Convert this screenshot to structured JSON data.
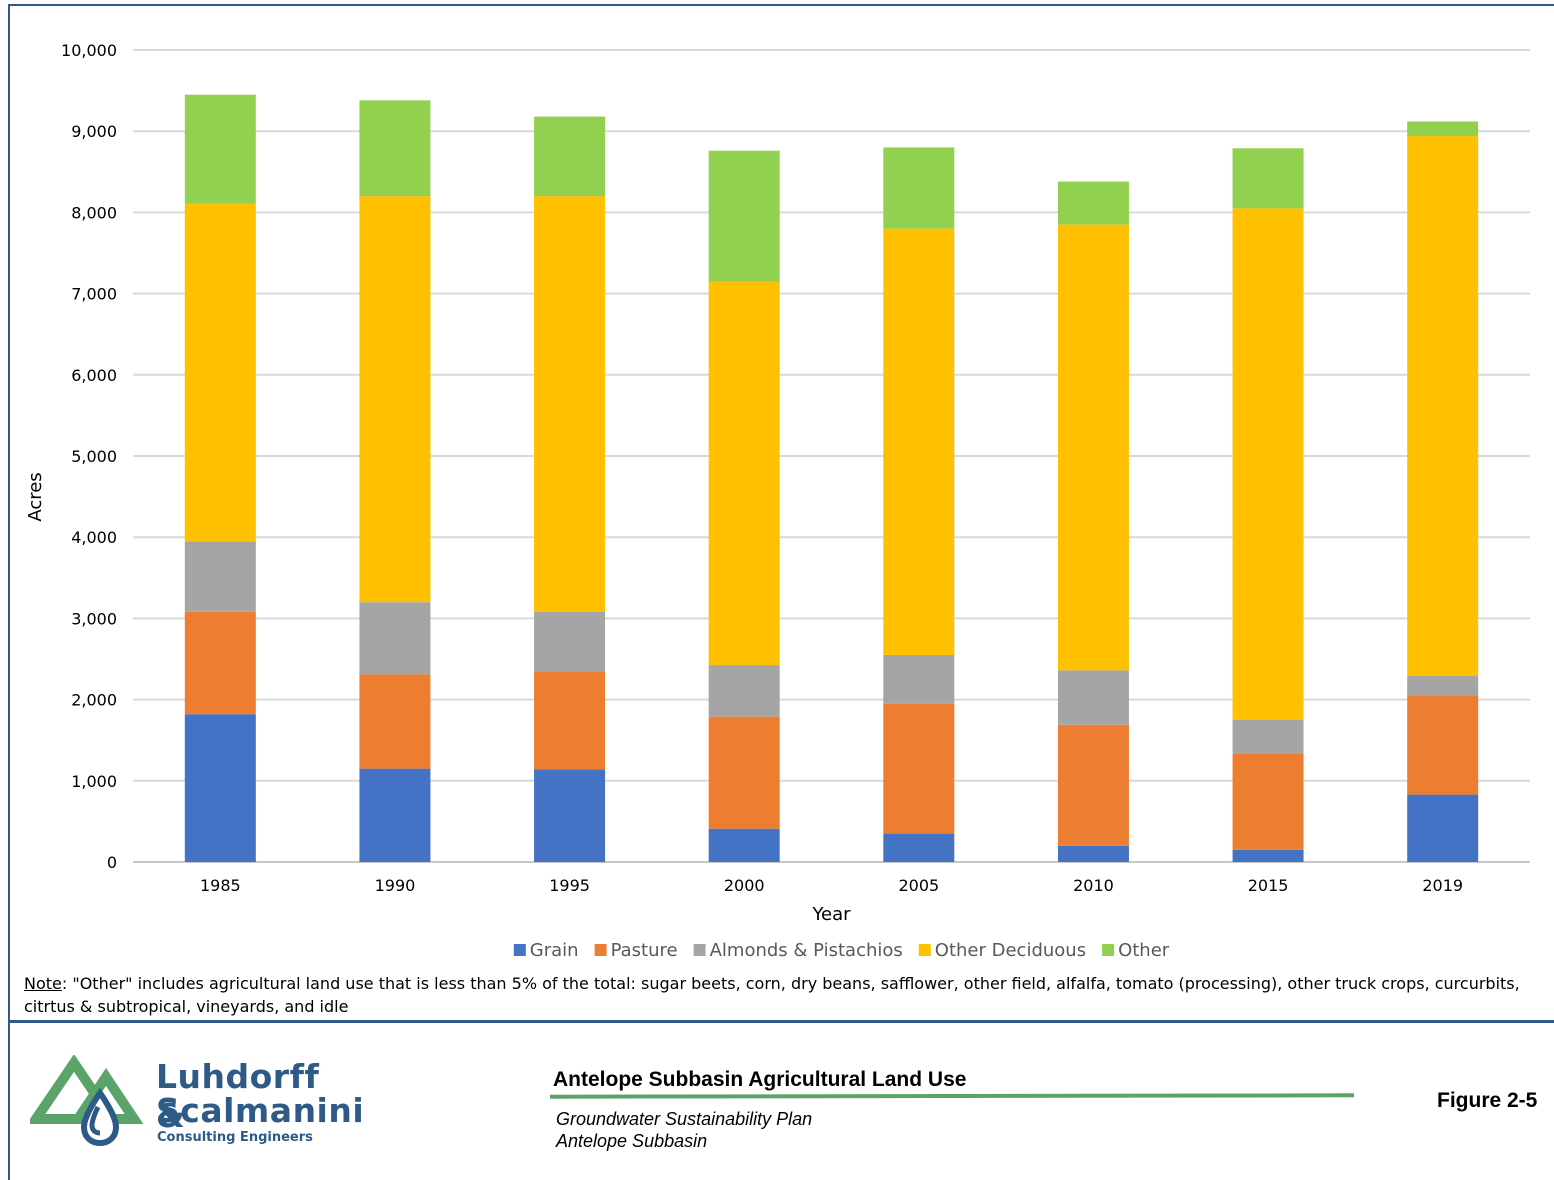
{
  "chart_data": {
    "type": "bar",
    "stacked": true,
    "categories": [
      "1985",
      "1990",
      "1995",
      "2000",
      "2005",
      "2010",
      "2015",
      "2019"
    ],
    "series": [
      {
        "name": "Grain",
        "color": "#4472c4",
        "values": [
          1820,
          1150,
          1140,
          410,
          350,
          200,
          150,
          830
        ]
      },
      {
        "name": "Pasture",
        "color": "#ed7d31",
        "values": [
          1260,
          1160,
          1210,
          1380,
          1600,
          1490,
          1190,
          1220
        ]
      },
      {
        "name": "Almonds & Pistachios",
        "color": "#a5a5a5",
        "values": [
          870,
          890,
          730,
          630,
          600,
          670,
          410,
          240
        ]
      },
      {
        "name": "Other Deciduous",
        "color": "#ffc000",
        "values": [
          4160,
          5000,
          5120,
          4730,
          5250,
          5490,
          6300,
          6650
        ]
      },
      {
        "name": "Other",
        "color": "#92d050",
        "values": [
          1340,
          1180,
          980,
          1610,
          1000,
          530,
          740,
          180
        ]
      }
    ],
    "xlabel": "Year",
    "ylabel": "Acres",
    "ylim": [
      0,
      10000
    ],
    "yticks": [
      0,
      1000,
      2000,
      3000,
      4000,
      5000,
      6000,
      7000,
      8000,
      9000,
      10000
    ],
    "ytick_labels": [
      "0",
      "1,000",
      "2,000",
      "3,000",
      "4,000",
      "5,000",
      "6,000",
      "7,000",
      "8,000",
      "9,000",
      "10,000"
    ],
    "grid": true,
    "legend_position": "bottom"
  },
  "note": {
    "label": "Note",
    "text": ": \"Other\" includes agricultural land use that is less than 5% of the total: sugar beets, corn, dry beans, safflower, other field, alfalfa, tomato (processing), other truck crops, curcurbits, citrtus & subtropical, vineyards, and idle"
  },
  "footer": {
    "firm_line1": "Luhdorff &",
    "firm_line2": "Scalmanini",
    "firm_line3": "Consulting Engineers",
    "figure_title": "Antelope Subbasin Agricultural Land Use",
    "subtitle1": "Groundwater Sustainability Plan",
    "subtitle2": "Antelope Subbasin",
    "figure_number": "Figure 2-5"
  },
  "colors": {
    "brand_blue": "#2e5a87",
    "brand_green": "#5aa469"
  }
}
